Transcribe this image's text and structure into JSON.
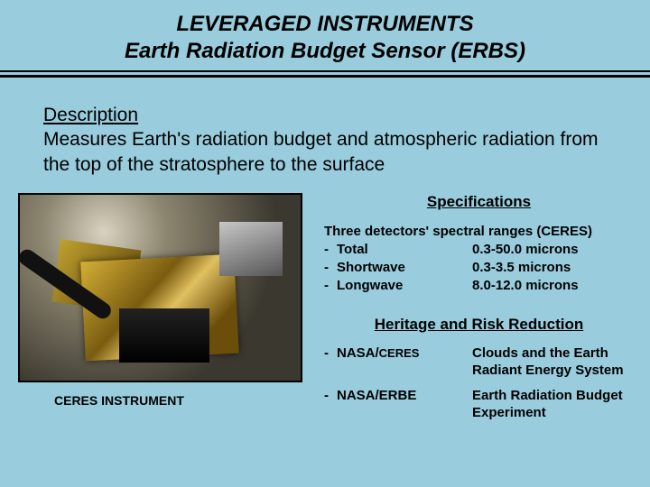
{
  "title": {
    "line1": "LEVERAGED INSTRUMENTS",
    "line2": "Earth Radiation Budget Sensor (ERBS)"
  },
  "description": {
    "heading": "Description",
    "body": "Measures Earth's radiation budget and atmospheric radiation from the top of the stratosphere to the surface"
  },
  "photo_caption": "CERES INSTRUMENT",
  "specifications": {
    "heading": "Specifications",
    "intro": "Three detectors' spectral ranges (CERES)",
    "rows": [
      {
        "label": "Total",
        "value": "0.3-50.0 microns"
      },
      {
        "label": "Shortwave",
        "value": "0.3-3.5 microns"
      },
      {
        "label": "Longwave",
        "value": "8.0-12.0 microns"
      }
    ]
  },
  "heritage": {
    "heading": "Heritage and Risk Reduction",
    "rows": [
      {
        "org": "NASA/",
        "prog": "CERES",
        "desc": "Clouds and the Earth Radiant Energy System"
      },
      {
        "org": "NASA/ERBE",
        "prog": "",
        "desc": "Earth Radiation Budget Experiment"
      }
    ]
  },
  "colors": {
    "background": "#99ccdd",
    "text": "#000000"
  }
}
